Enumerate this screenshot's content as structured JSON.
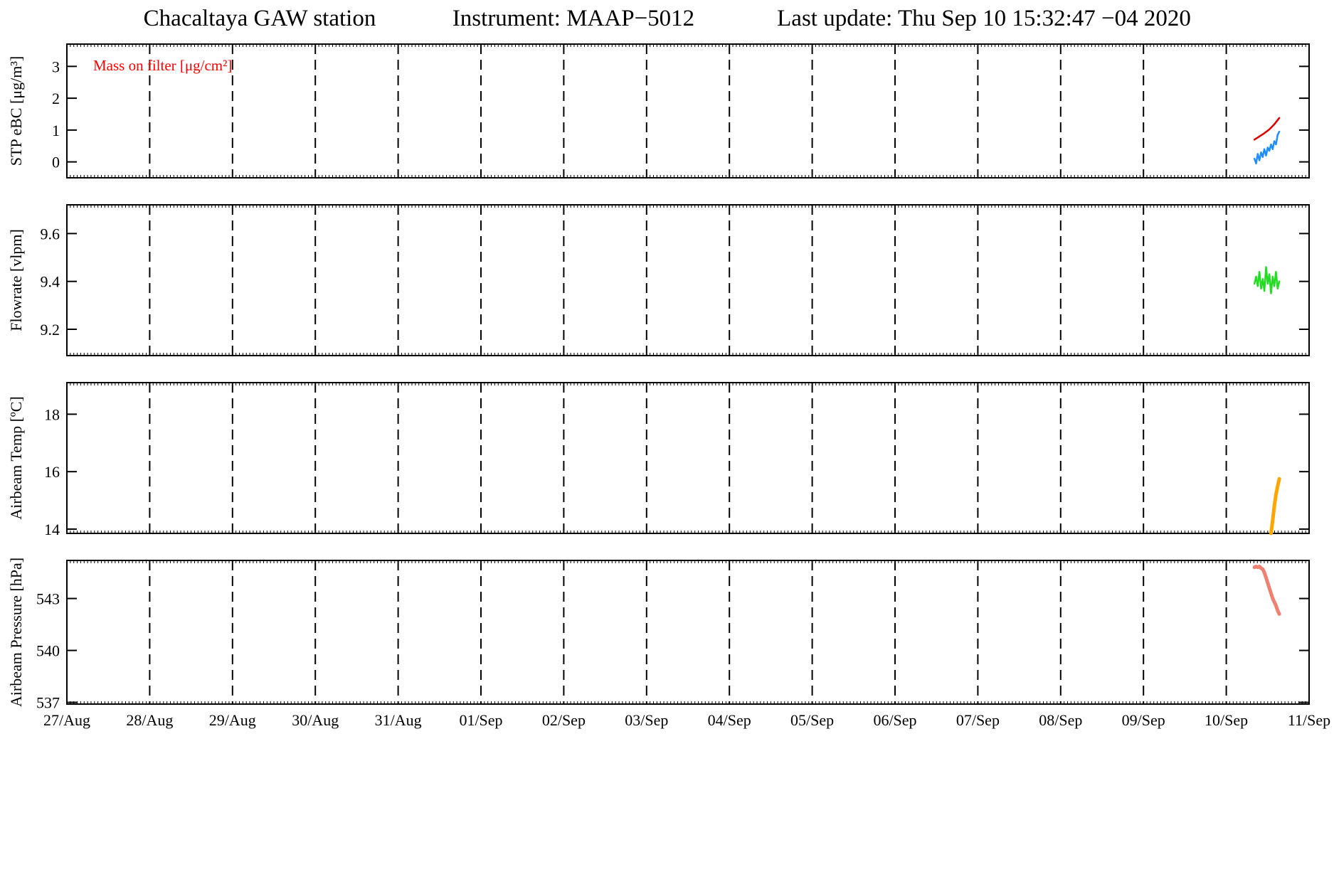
{
  "header": {
    "station": "Chacaltaya GAW station",
    "instrument": "Instrument: MAAP−5012",
    "last_update": "Last update: Thu Sep 10 15:32:47 −04 2020"
  },
  "chart_data": [
    {
      "type": "line",
      "ylabel": "STP eBC [μg/m³]",
      "ylim": [
        -0.5,
        3.7
      ],
      "yticks": [
        0,
        1,
        2,
        3
      ],
      "ytick_labels": [
        "0",
        "1",
        "2",
        "3"
      ],
      "annotation": "Mass on filter  [μg/cm²]",
      "annotation_color": "#ff0000",
      "series": [
        {
          "color": "#1f8fff",
          "x": [
            14.34,
            14.36,
            14.38,
            14.4,
            14.42,
            14.44,
            14.46,
            14.48,
            14.5,
            14.52,
            14.54,
            14.56,
            14.58,
            14.6,
            14.62,
            14.64
          ],
          "y": [
            0.1,
            -0.05,
            0.25,
            0.05,
            0.3,
            0.15,
            0.4,
            0.2,
            0.45,
            0.35,
            0.55,
            0.4,
            0.65,
            0.55,
            0.85,
            0.95
          ]
        },
        {
          "color": "#e00000",
          "x": [
            14.34,
            14.4,
            14.46,
            14.52,
            14.58,
            14.64
          ],
          "y": [
            0.7,
            0.8,
            0.9,
            1.02,
            1.18,
            1.38
          ]
        }
      ]
    },
    {
      "type": "line",
      "ylabel": "Flowrate  [vlpm]",
      "ylim": [
        9.09,
        9.72
      ],
      "yticks": [
        9.2,
        9.4,
        9.6
      ],
      "ytick_labels": [
        "9.2",
        "9.4",
        "9.6"
      ],
      "series": [
        {
          "color": "#22dd22",
          "x": [
            14.34,
            14.36,
            14.38,
            14.4,
            14.42,
            14.44,
            14.46,
            14.48,
            14.5,
            14.52,
            14.54,
            14.56,
            14.58,
            14.6,
            14.62,
            14.64
          ],
          "y": [
            9.39,
            9.42,
            9.38,
            9.44,
            9.37,
            9.41,
            9.36,
            9.46,
            9.39,
            9.43,
            9.35,
            9.42,
            9.38,
            9.44,
            9.37,
            9.4
          ]
        }
      ]
    },
    {
      "type": "line",
      "ylabel": "Airbeam Temp [ºC]",
      "ylim": [
        13.85,
        19.1
      ],
      "yticks": [
        14,
        16,
        18
      ],
      "ytick_labels": [
        "14",
        "16",
        "18"
      ],
      "series": [
        {
          "color": "#ffa500",
          "x": [
            14.54,
            14.56,
            14.58,
            14.6,
            14.62,
            14.64
          ],
          "y": [
            13.85,
            14.3,
            14.8,
            15.2,
            15.5,
            15.75
          ]
        }
      ]
    },
    {
      "type": "line",
      "ylabel": "Airbeam Pressure [hPa]",
      "ylim": [
        536.9,
        545.2
      ],
      "yticks": [
        537,
        540,
        543
      ],
      "ytick_labels": [
        "537",
        "540",
        "543"
      ],
      "xlim": [
        0,
        15
      ],
      "xtick_labels": [
        "27/Aug",
        "28/Aug",
        "29/Aug",
        "30/Aug",
        "31/Aug",
        "01/Sep",
        "02/Sep",
        "03/Sep",
        "04/Sep",
        "05/Sep",
        "06/Sep",
        "07/Sep",
        "08/Sep",
        "09/Sep",
        "10/Sep",
        "11/Sep"
      ],
      "series": [
        {
          "color": "#f08070",
          "x": [
            14.34,
            14.36,
            14.38,
            14.4,
            14.42,
            14.44,
            14.46,
            14.48,
            14.5,
            14.52,
            14.54,
            14.56,
            14.58,
            14.6,
            14.62,
            14.64
          ],
          "y": [
            544.8,
            544.85,
            544.8,
            544.85,
            544.75,
            544.7,
            544.5,
            544.2,
            543.9,
            543.6,
            543.3,
            543.0,
            542.8,
            542.6,
            542.3,
            542.1
          ]
        }
      ]
    }
  ]
}
